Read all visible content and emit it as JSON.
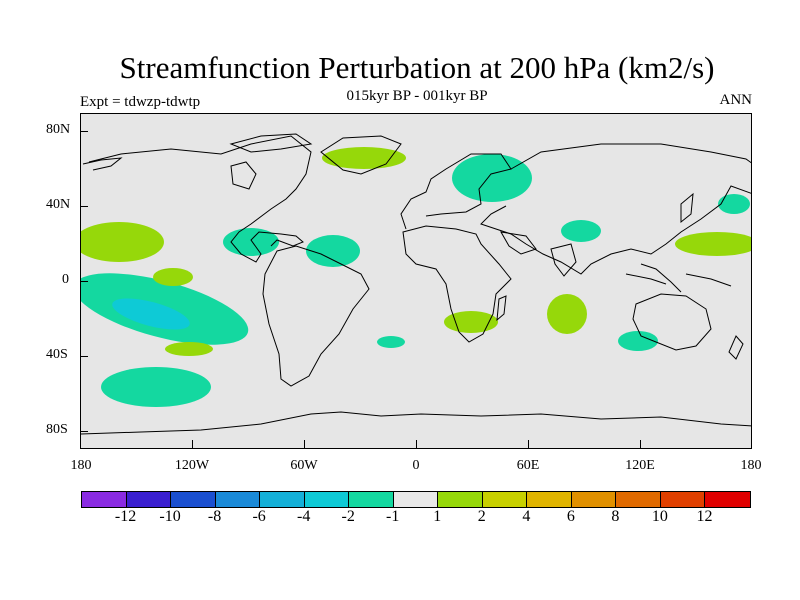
{
  "title": "Streamfunction Perturbation at 200 hPa (km2/s)",
  "subtitle": "015kyr BP - 001kyr BP",
  "left_label": "Expt = tdwzp-tdwtp",
  "right_label": "ANN",
  "map": {
    "background_color": "#e6e6e6",
    "latitude_labels": [
      "80N",
      "40N",
      "0",
      "40S",
      "80S"
    ],
    "longitude_labels": [
      "180",
      "120W",
      "60W",
      "0",
      "60E",
      "120E",
      "180"
    ]
  },
  "colorbar": {
    "colors": [
      "#8a2be2",
      "#3a1fd0",
      "#1a4fd0",
      "#1a8ad8",
      "#14b0d8",
      "#0ecad6",
      "#14d8a0",
      "#e8e8e8",
      "#96d80a",
      "#c8d000",
      "#e0b400",
      "#e09000",
      "#e06a00",
      "#e04000",
      "#e00000"
    ],
    "labels": [
      "-12",
      "-10",
      "-8",
      "-6",
      "-4",
      "-2",
      "-1",
      "1",
      "2",
      "4",
      "6",
      "8",
      "10",
      "12"
    ]
  },
  "anomaly_colors": {
    "positive": "#96d80a",
    "negative": "#14d8a0",
    "strong_negative": "#0ecad6"
  }
}
